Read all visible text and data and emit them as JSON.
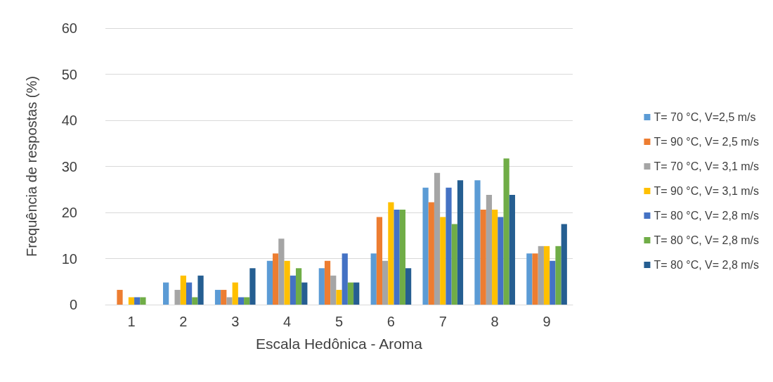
{
  "chart_data": {
    "type": "bar",
    "xlabel": "Escala Hedônica - Aroma",
    "ylabel": "Frequência de respostas (%)",
    "categories": [
      "1",
      "2",
      "3",
      "4",
      "5",
      "6",
      "7",
      "8",
      "9"
    ],
    "series": [
      {
        "name": "T= 70 °C, V=2,5 m/s",
        "color": "#5b9bd5",
        "values": [
          0,
          4.8,
          3.2,
          9.5,
          7.9,
          11.1,
          25.4,
          27.0,
          11.1
        ]
      },
      {
        "name": "T= 90 °C, V= 2,5 m/s",
        "color": "#ed7d31",
        "values": [
          3.2,
          0,
          3.2,
          11.1,
          9.5,
          19.0,
          22.2,
          20.6,
          11.1
        ]
      },
      {
        "name": "T= 70 °C, V= 3,1 m/s",
        "color": "#a5a5a5",
        "values": [
          0,
          3.2,
          1.6,
          14.3,
          6.3,
          9.5,
          28.6,
          23.8,
          12.7
        ]
      },
      {
        "name": "T= 90 °C, V= 3,1 m/s",
        "color": "#ffc000",
        "values": [
          1.6,
          6.3,
          4.8,
          9.5,
          3.2,
          22.2,
          19.0,
          20.6,
          12.7
        ]
      },
      {
        "name": "T= 80 °C, V= 2,8 m/s",
        "color": "#4472c4",
        "values": [
          1.6,
          4.8,
          1.6,
          6.3,
          11.1,
          20.6,
          25.4,
          19.0,
          9.5
        ]
      },
      {
        "name": "T= 80 °C, V= 2,8 m/s",
        "color": "#70ad47",
        "values": [
          1.6,
          1.6,
          1.6,
          7.9,
          4.8,
          20.6,
          17.5,
          31.7,
          12.7
        ]
      },
      {
        "name": "T= 80 °C, V= 2,8 m/s",
        "color": "#255e91",
        "values": [
          0,
          6.3,
          7.9,
          4.8,
          4.8,
          7.9,
          27.0,
          23.8,
          17.5
        ]
      }
    ],
    "ylim": [
      0,
      60
    ],
    "yticks": [
      0,
      10,
      20,
      30,
      40,
      50,
      60
    ],
    "grid": "y",
    "legend": "right"
  }
}
